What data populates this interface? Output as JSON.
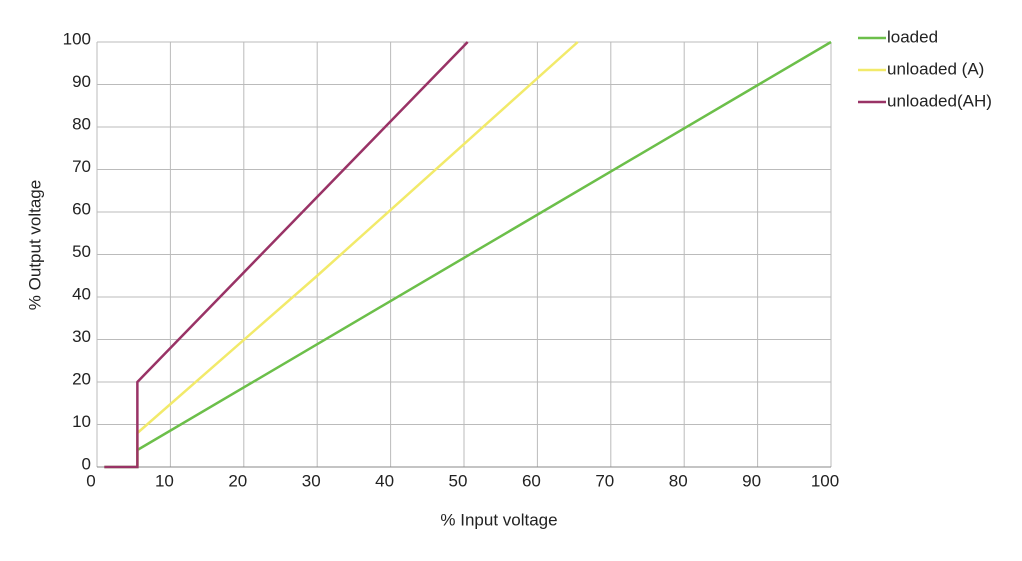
{
  "chart_data": {
    "type": "line",
    "x_label": "% Input voltage",
    "y_label": "% Output voltage",
    "xlim": [
      0,
      100
    ],
    "xticks": [
      0,
      10,
      20,
      30,
      40,
      50,
      60,
      70,
      80,
      90,
      100
    ],
    "ylim": [
      0,
      100
    ],
    "yticks": [
      0,
      10,
      20,
      30,
      40,
      50,
      60,
      70,
      80,
      90,
      100
    ],
    "grid": true,
    "legend": "top-right",
    "series": [
      {
        "name": "loaded",
        "color": "#6cbf4a",
        "x": [
          1,
          5.5,
          5.5,
          100
        ],
        "values": [
          0,
          0,
          4,
          100
        ]
      },
      {
        "name": "unloaded (A)",
        "color": "#f2ea6a",
        "x": [
          5.5,
          5.5,
          30,
          65.5
        ],
        "values": [
          0,
          8,
          45,
          100
        ]
      },
      {
        "name": "unloaded(AH)",
        "color": "#993366",
        "x": [
          1,
          5.5,
          5.5,
          50.5
        ],
        "values": [
          0,
          0,
          20,
          100
        ]
      }
    ]
  }
}
